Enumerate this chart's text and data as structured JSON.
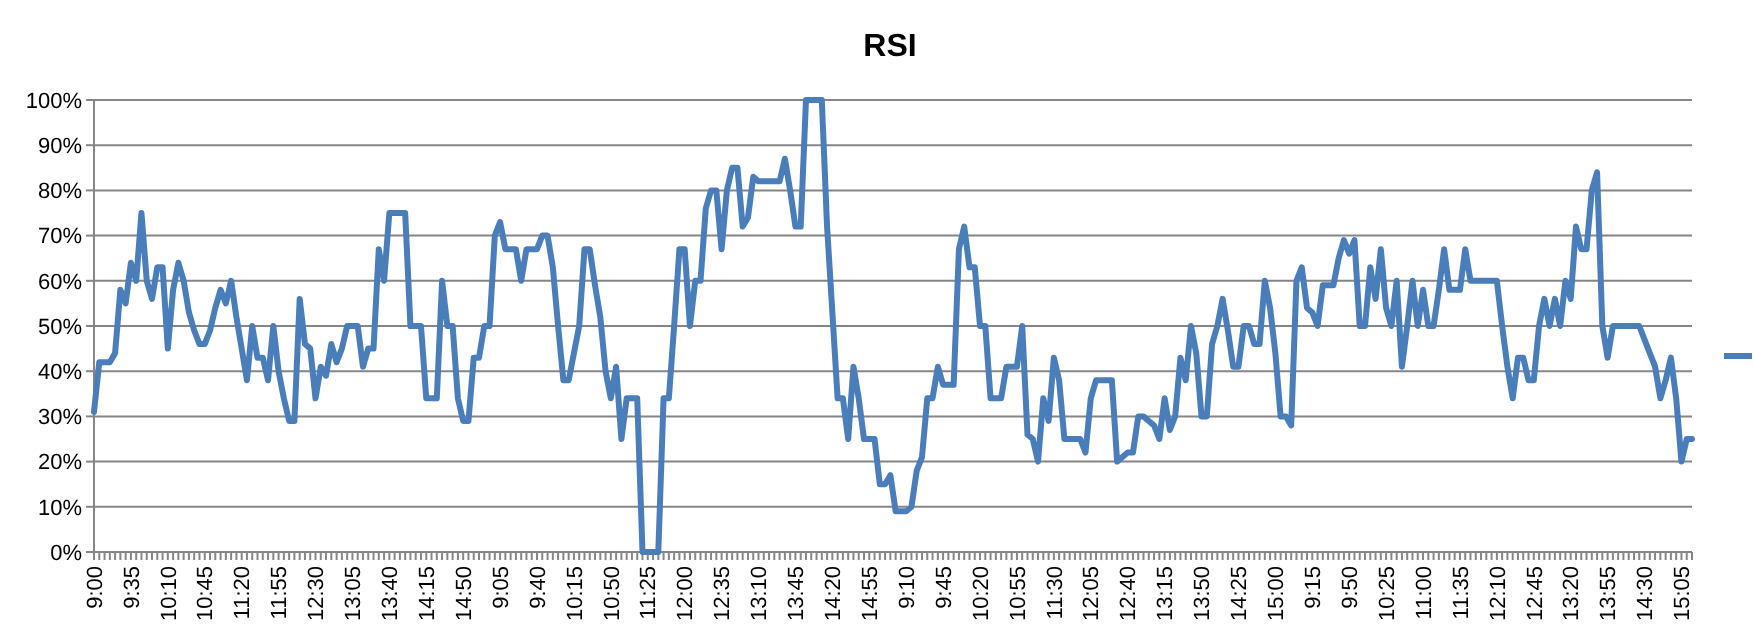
{
  "chart_data": {
    "type": "line",
    "title": "RSI",
    "categories": [
      "9:00",
      null,
      null,
      null,
      null,
      null,
      null,
      "9:35",
      null,
      null,
      null,
      null,
      null,
      null,
      "10:10",
      null,
      null,
      null,
      null,
      null,
      null,
      "10:45",
      null,
      null,
      null,
      null,
      null,
      null,
      "11:20",
      null,
      null,
      null,
      null,
      null,
      null,
      "11:55",
      null,
      null,
      null,
      null,
      null,
      null,
      "12:30",
      null,
      null,
      null,
      null,
      null,
      null,
      "13:05",
      null,
      null,
      null,
      null,
      null,
      null,
      "13:40",
      null,
      null,
      null,
      null,
      null,
      null,
      "14:15",
      null,
      null,
      null,
      null,
      null,
      null,
      "14:50",
      null,
      null,
      null,
      null,
      null,
      null,
      "9:05",
      null,
      null,
      null,
      null,
      null,
      null,
      "9:40",
      null,
      null,
      null,
      null,
      null,
      null,
      "10:15",
      null,
      null,
      null,
      null,
      null,
      null,
      "10:50",
      null,
      null,
      null,
      null,
      null,
      null,
      "11:25",
      null,
      null,
      null,
      null,
      null,
      null,
      "12:00",
      null,
      null,
      null,
      null,
      null,
      null,
      "12:35",
      null,
      null,
      null,
      null,
      null,
      null,
      "13:10",
      null,
      null,
      null,
      null,
      null,
      null,
      "13:45",
      null,
      null,
      null,
      null,
      null,
      null,
      "14:20",
      null,
      null,
      null,
      null,
      null,
      null,
      "14:55",
      null,
      null,
      null,
      null,
      null,
      null,
      "9:10",
      null,
      null,
      null,
      null,
      null,
      null,
      "9:45",
      null,
      null,
      null,
      null,
      null,
      null,
      "10:20",
      null,
      null,
      null,
      null,
      null,
      null,
      "10:55",
      null,
      null,
      null,
      null,
      null,
      null,
      "11:30",
      null,
      null,
      null,
      null,
      null,
      null,
      "12:05",
      null,
      null,
      null,
      null,
      null,
      null,
      "12:40",
      null,
      null,
      null,
      null,
      null,
      null,
      "13:15",
      null,
      null,
      null,
      null,
      null,
      null,
      "13:50",
      null,
      null,
      null,
      null,
      null,
      null,
      "14:25",
      null,
      null,
      null,
      null,
      null,
      null,
      "15:00",
      null,
      null,
      null,
      null,
      null,
      null,
      "9:15",
      null,
      null,
      null,
      null,
      null,
      null,
      "9:50",
      null,
      null,
      null,
      null,
      null,
      null,
      "10:25",
      null,
      null,
      null,
      null,
      null,
      null,
      "11:00",
      null,
      null,
      null,
      null,
      null,
      null,
      "11:35",
      null,
      null,
      null,
      null,
      null,
      null,
      "12:10",
      null,
      null,
      null,
      null,
      null,
      null,
      "12:45",
      null,
      null,
      null,
      null,
      null,
      null,
      "13:20",
      null,
      null,
      null,
      null,
      null,
      null,
      "13:55",
      null,
      null,
      null,
      null,
      null,
      null,
      "14:30",
      null,
      null,
      null,
      null,
      null,
      null,
      "15:05",
      null,
      null
    ],
    "series": [
      {
        "color": "#4a7ebb",
        "values": [
          31,
          42,
          42,
          42,
          44,
          58,
          55,
          64,
          60,
          75,
          60,
          56,
          63,
          63,
          45,
          58,
          64,
          60,
          53,
          49,
          46,
          46,
          49,
          54,
          58,
          55,
          60,
          52,
          45,
          38,
          50,
          43,
          43,
          38,
          50,
          40,
          34,
          29,
          29,
          56,
          46,
          45,
          34,
          41,
          39,
          46,
          42,
          45,
          50,
          50,
          50,
          41,
          45,
          45,
          67,
          60,
          75,
          75,
          75,
          75,
          50,
          50,
          50,
          34,
          34,
          34,
          60,
          50,
          50,
          34,
          29,
          29,
          43,
          43,
          50,
          50,
          70,
          73,
          67,
          67,
          67,
          60,
          67,
          67,
          67,
          70,
          70,
          63,
          50,
          38,
          38,
          44,
          50,
          67,
          67,
          59,
          52,
          40,
          34,
          41,
          25,
          34,
          34,
          34,
          0,
          0,
          0,
          0,
          34,
          34,
          50,
          67,
          67,
          50,
          60,
          60,
          76,
          80,
          80,
          67,
          80,
          85,
          85,
          72,
          74,
          83,
          82,
          82,
          82,
          82,
          82,
          87,
          80,
          72,
          72,
          100,
          100,
          100,
          100,
          72,
          53,
          34,
          34,
          25,
          41,
          34,
          25,
          25,
          25,
          15,
          15,
          17,
          9,
          9,
          9,
          10,
          18,
          21,
          34,
          34,
          41,
          37,
          37,
          37,
          67,
          72,
          63,
          63,
          50,
          50,
          34,
          34,
          34,
          41,
          41,
          41,
          50,
          26,
          25,
          20,
          34,
          29,
          43,
          38,
          25,
          25,
          25,
          25,
          22,
          34,
          38,
          38,
          38,
          38,
          20,
          21,
          22,
          22,
          30,
          30,
          29,
          28,
          25,
          34,
          27,
          30,
          43,
          38,
          50,
          44,
          30,
          30,
          46,
          50,
          56,
          49,
          41,
          41,
          50,
          50,
          46,
          46,
          60,
          54,
          44,
          30,
          30,
          28,
          60,
          63,
          54,
          53,
          50,
          59,
          59,
          59,
          65,
          69,
          66,
          69,
          50,
          50,
          63,
          56,
          67,
          54,
          50,
          60,
          41,
          50,
          60,
          50,
          58,
          50,
          50,
          58,
          67,
          58,
          58,
          58,
          67,
          60,
          60,
          60,
          60,
          60,
          60,
          50,
          41,
          34,
          43,
          43,
          38,
          38,
          50,
          56,
          50,
          56,
          50,
          60,
          56,
          72,
          67,
          67,
          80,
          84,
          50,
          43,
          50,
          50,
          50,
          50,
          50,
          50,
          47,
          44,
          41,
          34,
          38,
          43,
          34,
          20,
          25,
          25
        ]
      }
    ],
    "ylim": [
      0,
      100
    ],
    "yticks": [
      {
        "value": 0,
        "label": "0%"
      },
      {
        "value": 10,
        "label": "10%"
      },
      {
        "value": 20,
        "label": "20%"
      },
      {
        "value": 30,
        "label": "30%"
      },
      {
        "value": 40,
        "label": "40%"
      },
      {
        "value": 50,
        "label": "50%"
      },
      {
        "value": 60,
        "label": "60%"
      },
      {
        "value": 70,
        "label": "70%"
      },
      {
        "value": 80,
        "label": "80%"
      },
      {
        "value": 90,
        "label": "90%"
      },
      {
        "value": 100,
        "label": "100%"
      }
    ],
    "grid": "y",
    "marker": "none",
    "line_style": "solid"
  }
}
